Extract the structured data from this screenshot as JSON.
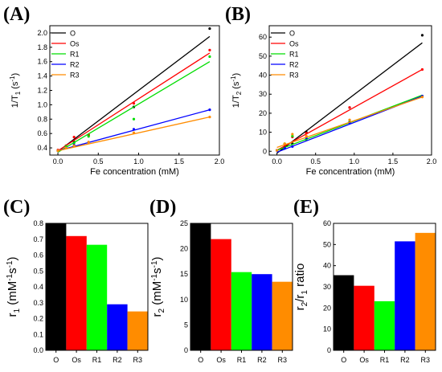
{
  "chart_data": [
    {
      "panel": "(A)",
      "type": "scatter",
      "xlabel": "Fe concentration (mM)",
      "ylabel_main": "1/T",
      "ylabel_sub": "1",
      "ylabel_unit": "(s",
      "ylabel_unit_sup": "-1",
      "ylabel_unit_end": ")",
      "xlim": [
        -0.1,
        2.0
      ],
      "ylim": [
        0.3,
        2.1
      ],
      "xticks": [
        0.0,
        0.5,
        1.0,
        1.5,
        2.0
      ],
      "xticklabels": [
        "0.0",
        "0.5",
        "1.0",
        "1.5",
        "2.0"
      ],
      "yticks": [
        0.4,
        0.6,
        0.8,
        1.0,
        1.2,
        1.4,
        1.6,
        1.8,
        2.0
      ],
      "yticklabels": [
        "0.4",
        "0.6",
        "0.8",
        "1.0",
        "1.2",
        "1.4",
        "1.6",
        "1.8",
        "2.0"
      ],
      "legend_position": "top-left",
      "series": [
        {
          "name": "O",
          "color": "#000000",
          "x": [
            0.0,
            0.1,
            0.2,
            0.38,
            0.94,
            1.88
          ],
          "y": [
            0.36,
            0.42,
            0.48,
            0.58,
            0.97,
            2.06
          ],
          "fit": [
            [
              0.0,
              0.35
            ],
            [
              1.88,
              1.95
            ]
          ]
        },
        {
          "name": "Os",
          "color": "#ff0000",
          "x": [
            0.0,
            0.1,
            0.2,
            0.38,
            0.94,
            1.88
          ],
          "y": [
            0.37,
            0.43,
            0.55,
            0.58,
            1.02,
            1.76
          ],
          "fit": [
            [
              0.0,
              0.36
            ],
            [
              1.88,
              1.72
            ]
          ]
        },
        {
          "name": "R1",
          "color": "#00dd00",
          "x": [
            0.0,
            0.1,
            0.2,
            0.38,
            0.94,
            1.88
          ],
          "y": [
            0.36,
            0.42,
            0.47,
            0.56,
            0.8,
            1.67
          ],
          "fit": [
            [
              0.0,
              0.34
            ],
            [
              1.88,
              1.6
            ]
          ]
        },
        {
          "name": "R2",
          "color": "#0000ff",
          "x": [
            0.0,
            0.1,
            0.2,
            0.38,
            0.94,
            1.88
          ],
          "y": [
            0.36,
            0.4,
            0.44,
            0.48,
            0.66,
            0.93
          ],
          "fit": [
            [
              0.0,
              0.36
            ],
            [
              1.88,
              0.93
            ]
          ]
        },
        {
          "name": "R3",
          "color": "#ff8c00",
          "x": [
            0.0,
            0.1,
            0.2,
            0.38,
            0.94,
            1.88
          ],
          "y": [
            0.36,
            0.4,
            0.43,
            0.48,
            0.61,
            0.83
          ],
          "fit": [
            [
              0.0,
              0.36
            ],
            [
              1.88,
              0.83
            ]
          ]
        }
      ]
    },
    {
      "panel": "(B)",
      "type": "scatter",
      "xlabel": "Fe concentration (mM)",
      "ylabel_main": "1/T",
      "ylabel_sub": "2",
      "ylabel_unit": "(s",
      "ylabel_unit_sup": "-1",
      "ylabel_unit_end": ")",
      "xlim": [
        -0.1,
        2.0
      ],
      "ylim": [
        -2,
        66
      ],
      "xticks": [
        0.0,
        0.5,
        1.0,
        1.5,
        2.0
      ],
      "xticklabels": [
        "0.0",
        "0.5",
        "1.0",
        "1.5",
        "2.0"
      ],
      "yticks": [
        0,
        10,
        20,
        30,
        40,
        50,
        60
      ],
      "yticklabels": [
        "0",
        "10",
        "20",
        "30",
        "40",
        "50",
        "60"
      ],
      "legend_position": "top-left",
      "series": [
        {
          "name": "O",
          "color": "#000000",
          "x": [
            0.0,
            0.1,
            0.2,
            0.38,
            0.94,
            1.88
          ],
          "y": [
            0.5,
            2.0,
            4.0,
            10.0,
            23.0,
            61.0
          ],
          "fit": [
            [
              0.0,
              -1.0
            ],
            [
              1.88,
              57.0
            ]
          ]
        },
        {
          "name": "Os",
          "color": "#ff0000",
          "x": [
            0.0,
            0.1,
            0.2,
            0.38,
            0.94,
            1.88
          ],
          "y": [
            0.5,
            3.5,
            7.5,
            9.5,
            23.0,
            43.0
          ],
          "fit": [
            [
              0.0,
              0.5
            ],
            [
              1.88,
              43.0
            ]
          ]
        },
        {
          "name": "R1",
          "color": "#00dd00",
          "x": [
            0.0,
            0.1,
            0.2,
            0.38,
            0.94,
            1.88
          ],
          "y": [
            0.5,
            4.0,
            8.0,
            6.0,
            15.5,
            29.0
          ],
          "fit": [
            [
              0.0,
              0.5
            ],
            [
              1.88,
              29.5
            ]
          ]
        },
        {
          "name": "R2",
          "color": "#0000ff",
          "x": [
            0.0,
            0.1,
            0.2,
            0.38,
            0.94,
            1.88
          ],
          "y": [
            0.5,
            1.5,
            2.5,
            7.0,
            15.0,
            29.0
          ],
          "fit": [
            [
              0.0,
              -0.5
            ],
            [
              1.88,
              29.0
            ]
          ]
        },
        {
          "name": "R3",
          "color": "#ff8c00",
          "x": [
            0.0,
            0.1,
            0.2,
            0.38,
            0.94,
            1.88
          ],
          "y": [
            0.5,
            4.0,
            9.0,
            8.0,
            16.5,
            28.5
          ],
          "fit": [
            [
              0.0,
              2.0
            ],
            [
              1.88,
              28.5
            ]
          ]
        }
      ]
    },
    {
      "panel": "(C)",
      "type": "bar",
      "ylabel_main": "r",
      "ylabel_sub": "1",
      "ylabel_unit": " (mM",
      "ylabel_unit_sup": "-1",
      "ylabel_unit_mid": "s",
      "ylabel_unit_sup2": "-1",
      "ylabel_unit_end": ")",
      "ylim": [
        0,
        0.8
      ],
      "yticks": [
        0.0,
        0.1,
        0.2,
        0.3,
        0.4,
        0.5,
        0.6,
        0.7,
        0.8
      ],
      "yticklabels": [
        "0.0",
        "0.1",
        "0.2",
        "0.3",
        "0.4",
        "0.5",
        "0.6",
        "0.7",
        "0.8"
      ],
      "categories": [
        "O",
        "Os",
        "R1",
        "R2",
        "R3"
      ],
      "values": [
        0.8,
        0.72,
        0.665,
        0.29,
        0.245
      ],
      "colors": [
        "#000000",
        "#ff0000",
        "#00ff00",
        "#0000ff",
        "#ff8c00"
      ]
    },
    {
      "panel": "(D)",
      "type": "bar",
      "ylabel_main": "r",
      "ylabel_sub": "2",
      "ylabel_unit": " (mM",
      "ylabel_unit_sup": "-1",
      "ylabel_unit_mid": "s",
      "ylabel_unit_sup2": "-1",
      "ylabel_unit_end": ")",
      "ylim": [
        0,
        25
      ],
      "yticks": [
        0,
        5,
        10,
        15,
        20,
        25
      ],
      "yticklabels": [
        "0",
        "5",
        "10",
        "15",
        "20",
        "25"
      ],
      "categories": [
        "O",
        "Os",
        "R1",
        "R2",
        "R3"
      ],
      "values": [
        25.0,
        21.9,
        15.4,
        15.0,
        13.5
      ],
      "colors": [
        "#000000",
        "#ff0000",
        "#00ff00",
        "#0000ff",
        "#ff8c00"
      ]
    },
    {
      "panel": "(E)",
      "type": "bar",
      "ylabel_main": "r",
      "ylabel_sub": "2",
      "ylabel_mid": "/r",
      "ylabel_sub2": "1",
      "ylabel_end": " ratio",
      "ylim": [
        0,
        60
      ],
      "yticks": [
        0,
        10,
        20,
        30,
        40,
        50,
        60
      ],
      "yticklabels": [
        "0",
        "10",
        "20",
        "30",
        "40",
        "50",
        "60"
      ],
      "categories": [
        "O",
        "Os",
        "R1",
        "R2",
        "R3"
      ],
      "values": [
        35.5,
        30.5,
        23.2,
        51.5,
        55.5
      ],
      "colors": [
        "#000000",
        "#ff0000",
        "#00ff00",
        "#0000ff",
        "#ff8c00"
      ]
    }
  ]
}
